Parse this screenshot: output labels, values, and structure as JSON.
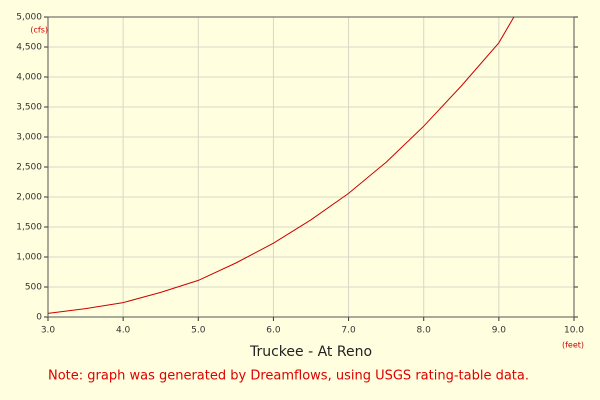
{
  "chart_data": {
    "type": "line",
    "title": "Truckee - At Reno",
    "note": "Note: graph was generated by Dreamflows, using USGS rating-table data.",
    "y_unit": "(cfs)",
    "x_unit": "(feet)",
    "x": [
      3.0,
      3.5,
      4.0,
      4.5,
      5.0,
      5.5,
      6.0,
      6.5,
      7.0,
      7.5,
      8.0,
      8.5,
      9.0,
      9.2
    ],
    "series": [
      {
        "color": "#cc0000",
        "values": [
          60,
          140,
          240,
          410,
          610,
          900,
          1230,
          1620,
          2060,
          2580,
          3180,
          3850,
          4570,
          5000
        ]
      }
    ],
    "xlim": [
      3,
      10
    ],
    "ylim": [
      0,
      5000
    ],
    "xticks": [
      {
        "value": 3,
        "label": "3.0"
      },
      {
        "value": 4,
        "label": "4.0"
      },
      {
        "value": 5,
        "label": "5.0"
      },
      {
        "value": 6,
        "label": "6.0"
      },
      {
        "value": 7,
        "label": "7.0"
      },
      {
        "value": 8,
        "label": "8.0"
      },
      {
        "value": 9,
        "label": "9.0"
      },
      {
        "value": 10,
        "label": "10.0"
      }
    ],
    "yticks": [
      0,
      500,
      {
        "value": 1000,
        "label": "1,000"
      },
      {
        "value": 1500,
        "label": "1,500"
      },
      {
        "value": 2000,
        "label": "2,000"
      },
      {
        "value": 2500,
        "label": "2,500"
      },
      {
        "value": 3000,
        "label": "3,000"
      },
      {
        "value": 3500,
        "label": "3,500"
      },
      {
        "value": 4000,
        "label": "4,000"
      },
      {
        "value": 4500,
        "label": "4,500"
      },
      {
        "value": 5000,
        "label": "5,000"
      }
    ],
    "grid": true
  }
}
